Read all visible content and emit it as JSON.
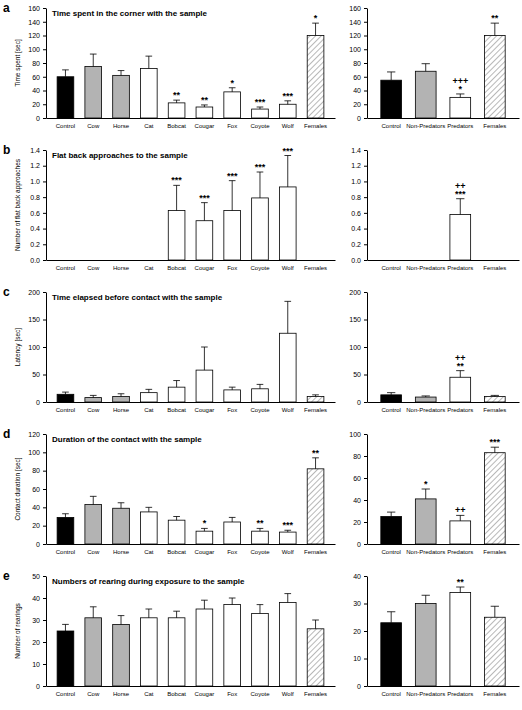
{
  "chart_data": [
    {
      "type": "bar",
      "panel_label": "a",
      "title": "Time spent in the corner with the sample",
      "ylabel": "Time spent [sec]",
      "categories": [
        "Control",
        "Cow",
        "Horse",
        "Cat",
        "Bobcat",
        "Cougar",
        "Fox",
        "Coyote",
        "Wolf",
        "Females"
      ],
      "values": [
        60,
        75,
        62,
        72,
        22,
        16,
        38,
        13,
        20,
        120
      ],
      "errors": [
        10,
        18,
        7,
        18,
        4,
        3,
        6,
        3,
        5,
        18
      ],
      "annotations": [
        null,
        null,
        null,
        null,
        [
          "**"
        ],
        [
          "**"
        ],
        [
          "*"
        ],
        [
          "***"
        ],
        [
          "***"
        ],
        [
          "*"
        ]
      ],
      "colors": [
        "#000000",
        "#b3b3b3",
        "#b3b3b3",
        "#ffffff",
        "#ffffff",
        "#ffffff",
        "#ffffff",
        "#ffffff",
        "#ffffff",
        "hatched"
      ],
      "ylim": [
        0,
        160
      ],
      "yticks": [
        0,
        20,
        40,
        60,
        80,
        100,
        120,
        140,
        160
      ]
    },
    {
      "type": "bar",
      "categories": [
        "Control",
        "Non-Predators",
        "Predators",
        "Females"
      ],
      "values": [
        55,
        68,
        30,
        120
      ],
      "errors": [
        12,
        11,
        5,
        18
      ],
      "annotations": [
        null,
        null,
        [
          "+++",
          "*"
        ],
        [
          "**"
        ]
      ],
      "colors": [
        "#000000",
        "#b3b3b3",
        "#ffffff",
        "hatched"
      ],
      "ylim": [
        0,
        160
      ],
      "yticks": [
        0,
        20,
        40,
        60,
        80,
        100,
        120,
        140,
        160
      ]
    },
    {
      "type": "bar",
      "panel_label": "b",
      "title": "Flat back approaches to the sample",
      "ylabel": "Number of flat back approaches",
      "categories": [
        "Control",
        "Cow",
        "Horse",
        "Cat",
        "Bobcat",
        "Cougar",
        "Fox",
        "Coyote",
        "Wolf",
        "Females"
      ],
      "values": [
        0,
        0,
        0,
        0,
        0.63,
        0.5,
        0.63,
        0.79,
        0.93,
        0
      ],
      "errors": [
        null,
        null,
        null,
        null,
        0.32,
        0.23,
        0.38,
        0.33,
        0.4,
        null
      ],
      "annotations": [
        null,
        null,
        null,
        null,
        [
          "***"
        ],
        [
          "***"
        ],
        [
          "***"
        ],
        [
          "***"
        ],
        [
          "***"
        ],
        null
      ],
      "colors": [
        "#000000",
        "#b3b3b3",
        "#b3b3b3",
        "#ffffff",
        "#ffffff",
        "#ffffff",
        "#ffffff",
        "#ffffff",
        "#ffffff",
        "hatched"
      ],
      "ylim": [
        0,
        1.4
      ],
      "yticks": [
        {
          "value": 0,
          "label": "0.0"
        },
        {
          "value": 0.2,
          "label": "0.2"
        },
        {
          "value": 0.4,
          "label": "0.4"
        },
        {
          "value": 0.6,
          "label": "0.6"
        },
        {
          "value": 0.8,
          "label": "0.8"
        },
        {
          "value": 1,
          "label": "1.0"
        },
        {
          "value": 1.2,
          "label": "1.2"
        },
        {
          "value": 1.4,
          "label": "1.4"
        }
      ]
    },
    {
      "type": "bar",
      "categories": [
        "Control",
        "Non-Predators",
        "Predators",
        "Females"
      ],
      "values": [
        0,
        0,
        0.58,
        0
      ],
      "errors": [
        null,
        null,
        0.2,
        null
      ],
      "annotations": [
        null,
        null,
        [
          "++",
          "***"
        ],
        null
      ],
      "colors": [
        "#000000",
        "#b3b3b3",
        "#ffffff",
        "hatched"
      ],
      "ylim": [
        0,
        1.4
      ],
      "yticks": [
        {
          "value": 0,
          "label": "0.0"
        },
        {
          "value": 0.2,
          "label": "0.2"
        },
        {
          "value": 0.4,
          "label": "0.4"
        },
        {
          "value": 0.6,
          "label": "0.6"
        },
        {
          "value": 0.8,
          "label": "0.8"
        },
        {
          "value": 1,
          "label": "1.0"
        },
        {
          "value": 1.2,
          "label": "1.2"
        },
        {
          "value": 1.4,
          "label": "1.4"
        }
      ]
    },
    {
      "type": "bar",
      "panel_label": "c",
      "title": "Time elapsed before contact with the sample",
      "ylabel": "Latency [sec]",
      "categories": [
        "Control",
        "Cow",
        "Horse",
        "Cat",
        "Bobcat",
        "Cougar",
        "Fox",
        "Coyote",
        "Wolf",
        "Females"
      ],
      "values": [
        14,
        8,
        10,
        17,
        27,
        58,
        22,
        24,
        125,
        10
      ],
      "errors": [
        4,
        4,
        5,
        6,
        12,
        42,
        5,
        8,
        58,
        3
      ],
      "annotations": [
        null,
        null,
        null,
        null,
        null,
        null,
        null,
        null,
        null,
        null
      ],
      "colors": [
        "#000000",
        "#b3b3b3",
        "#b3b3b3",
        "#ffffff",
        "#ffffff",
        "#ffffff",
        "#ffffff",
        "#ffffff",
        "#ffffff",
        "hatched"
      ],
      "ylim": [
        0,
        200
      ],
      "yticks": [
        0,
        50,
        100,
        150,
        200
      ]
    },
    {
      "type": "bar",
      "categories": [
        "Control",
        "Non-Predators",
        "Predators",
        "Females"
      ],
      "values": [
        13,
        9,
        45,
        10
      ],
      "errors": [
        4,
        2,
        12,
        2
      ],
      "annotations": [
        null,
        null,
        [
          "++",
          "**"
        ],
        null
      ],
      "colors": [
        "#000000",
        "#b3b3b3",
        "#ffffff",
        "hatched"
      ],
      "ylim": [
        0,
        200
      ],
      "yticks": [
        0,
        50,
        100,
        150,
        200
      ]
    },
    {
      "type": "bar",
      "panel_label": "d",
      "title": "Duration of the contact with the sample",
      "ylabel": "Contact duration [sec]",
      "categories": [
        "Control",
        "Cow",
        "Horse",
        "Cat",
        "Bobcat",
        "Cougar",
        "Fox",
        "Coyote",
        "Wolf",
        "Females"
      ],
      "values": [
        29,
        43,
        39,
        35,
        26,
        14,
        24,
        14,
        13,
        82
      ],
      "errors": [
        4,
        9,
        6,
        5,
        4,
        3,
        5,
        3,
        2,
        12
      ],
      "annotations": [
        null,
        null,
        null,
        null,
        null,
        [
          "*"
        ],
        null,
        [
          "**"
        ],
        [
          "***"
        ],
        [
          "**"
        ]
      ],
      "colors": [
        "#000000",
        "#b3b3b3",
        "#b3b3b3",
        "#ffffff",
        "#ffffff",
        "#ffffff",
        "#ffffff",
        "#ffffff",
        "#ffffff",
        "hatched"
      ],
      "ylim": [
        0,
        120
      ],
      "yticks": [
        0,
        20,
        40,
        60,
        80,
        100,
        120
      ]
    },
    {
      "type": "bar",
      "categories": [
        "Control",
        "Non-Predators",
        "Predators",
        "Females"
      ],
      "values": [
        25,
        41,
        21,
        83
      ],
      "errors": [
        4,
        9,
        5,
        5
      ],
      "annotations": [
        null,
        [
          "*"
        ],
        [
          "++"
        ],
        [
          "***"
        ]
      ],
      "colors": [
        "#000000",
        "#b3b3b3",
        "#ffffff",
        "hatched"
      ],
      "ylim": [
        0,
        100
      ],
      "yticks": [
        0,
        20,
        40,
        60,
        80,
        100
      ]
    },
    {
      "type": "bar",
      "panel_label": "e",
      "title": "Numbers of rearing during exposure to the sample",
      "ylabel": "Number of rearings",
      "categories": [
        "Control",
        "Cow",
        "Horse",
        "Cat",
        "Bobcat",
        "Cougar",
        "Fox",
        "Coyote",
        "Wolf",
        "Females"
      ],
      "values": [
        25,
        31,
        28,
        31,
        31,
        35,
        37,
        33,
        38,
        26
      ],
      "errors": [
        3,
        5,
        4,
        4,
        3,
        4,
        3,
        4,
        4,
        4
      ],
      "annotations": [
        null,
        null,
        null,
        null,
        null,
        null,
        null,
        null,
        null,
        null
      ],
      "colors": [
        "#000000",
        "#b3b3b3",
        "#b3b3b3",
        "#ffffff",
        "#ffffff",
        "#ffffff",
        "#ffffff",
        "#ffffff",
        "#ffffff",
        "hatched"
      ],
      "ylim": [
        0,
        50
      ],
      "yticks": [
        0,
        10,
        20,
        30,
        40,
        50
      ]
    },
    {
      "type": "bar",
      "categories": [
        "Control",
        "Non-Predators",
        "Predators",
        "Females"
      ],
      "values": [
        23,
        30,
        34,
        25
      ],
      "errors": [
        4,
        3,
        2,
        4
      ],
      "annotations": [
        null,
        null,
        [
          "**"
        ],
        null
      ],
      "colors": [
        "#000000",
        "#b3b3b3",
        "#ffffff",
        "hatched"
      ],
      "ylim": [
        0,
        40
      ],
      "yticks": [
        0,
        10,
        20,
        30,
        40
      ]
    }
  ]
}
